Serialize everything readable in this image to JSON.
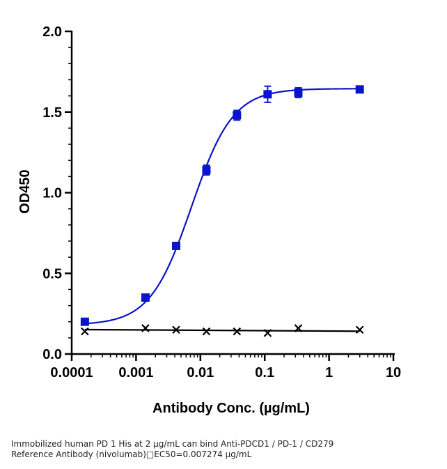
{
  "chart_data": {
    "type": "scatter",
    "xlabel": "Antibody Conc. (µg/mL)",
    "ylabel": "OD450",
    "x_scale": "log",
    "xlim": [
      0.0001,
      10
    ],
    "ylim": [
      0.0,
      2.0
    ],
    "x_ticks": [
      "0.0001",
      "0.001",
      "0.01",
      "0.1",
      "1",
      "10"
    ],
    "y_ticks": [
      "0.0",
      "0.5",
      "1.0",
      "1.5",
      "2.0"
    ],
    "grid": false,
    "series": [
      {
        "marker": "square",
        "color": "#0a14c8",
        "fit": "sigmoidal 4PL",
        "points": [
          {
            "x": 0.00016,
            "y": 0.2,
            "err": 0.01
          },
          {
            "x": 0.0014,
            "y": 0.35,
            "err": 0.01
          },
          {
            "x": 0.0042,
            "y": 0.67,
            "err": 0.01
          },
          {
            "x": 0.0124,
            "y": 1.14,
            "err": 0.03
          },
          {
            "x": 0.037,
            "y": 1.48,
            "err": 0.03
          },
          {
            "x": 0.111,
            "y": 1.61,
            "err": 0.05
          },
          {
            "x": 0.333,
            "y": 1.62,
            "err": 0.03
          },
          {
            "x": 3.0,
            "y": 1.64,
            "err": 0.01
          }
        ]
      },
      {
        "marker": "x",
        "color": "#000000",
        "fit": "line",
        "points": [
          {
            "x": 0.00016,
            "y": 0.14
          },
          {
            "x": 0.0014,
            "y": 0.16
          },
          {
            "x": 0.0042,
            "y": 0.15
          },
          {
            "x": 0.0124,
            "y": 0.14
          },
          {
            "x": 0.037,
            "y": 0.14
          },
          {
            "x": 0.111,
            "y": 0.13
          },
          {
            "x": 0.333,
            "y": 0.16
          },
          {
            "x": 3.0,
            "y": 0.15
          }
        ]
      }
    ]
  },
  "caption": {
    "line1": "Immobilized human PD 1 His at 2  µg/mL can bind  Anti-PDCD1 / PD-1 / CD279",
    "line2": "Reference Antibody (nivolumab)□EC50=0.007274 µg/mL"
  }
}
